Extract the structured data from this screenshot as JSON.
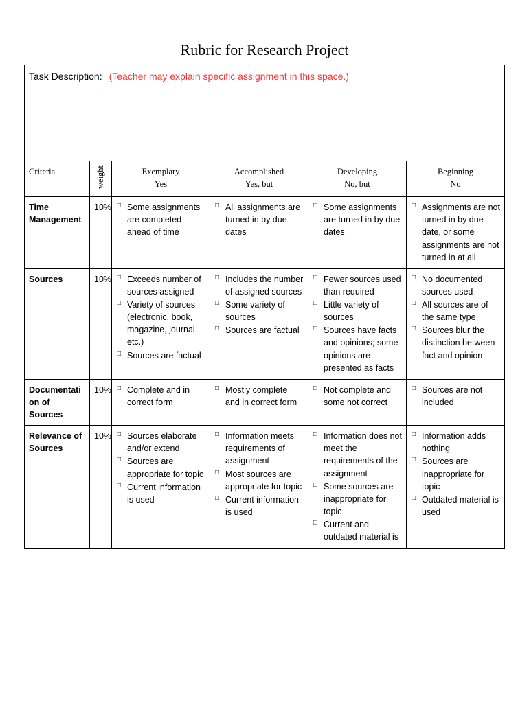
{
  "title": "Rubric for Research Project",
  "task_description": {
    "label": "Task Description:",
    "hint": "(Teacher may explain specific assignment in this space.)"
  },
  "headers": {
    "criteria": "Criteria",
    "weight": "weight",
    "levels": [
      {
        "title": "Exemplary",
        "sub": "Yes"
      },
      {
        "title": "Accomplished",
        "sub": "Yes, but"
      },
      {
        "title": "Developing",
        "sub": "No, but"
      },
      {
        "title": "Beginning",
        "sub": "No"
      }
    ]
  },
  "rows": [
    {
      "criteria": "Time Management",
      "weight": "10%",
      "cells": [
        [
          "Some assignments are completed ahead of time"
        ],
        [
          "All assignments are turned in by due dates"
        ],
        [
          "Some assignments are turned in by due dates"
        ],
        [
          "Assignments are not turned in by due date, or some assignments are not turned in at all"
        ]
      ]
    },
    {
      "criteria": "Sources",
      "weight": "10%",
      "cells": [
        [
          "Exceeds number of sources assigned",
          "Variety of sources (electronic, book, magazine, journal, etc.)",
          "Sources are factual"
        ],
        [
          "Includes the number of assigned sources",
          "Some variety of sources",
          "Sources are factual"
        ],
        [
          "Fewer sources used than required",
          "Little variety of sources",
          "Sources have facts and opinions; some opinions are presented as facts"
        ],
        [
          "No documented sources used",
          "All sources are of the same type",
          "Sources blur the distinction between fact and opinion"
        ]
      ]
    },
    {
      "criteria": "Documentation of Sources",
      "weight": "10%",
      "cells": [
        [
          "Complete and in correct form"
        ],
        [
          "Mostly complete and in correct form"
        ],
        [
          "Not complete and some not correct"
        ],
        [
          "Sources are not included"
        ]
      ]
    },
    {
      "criteria": "Relevance of Sources",
      "weight": "10%",
      "cells": [
        [
          "Sources elaborate and/or extend",
          "Sources are appropriate for topic",
          "Current information is used"
        ],
        [
          "Information meets requirements of assignment",
          "Most sources are appropriate for topic",
          "Current information is used"
        ],
        [
          "Information does not meet the requirements of the assignment",
          "Some sources are inappropriate for topic",
          "Current and outdated material is"
        ],
        [
          "Information adds nothing",
          "Sources are inappropriate for topic",
          "Outdated material is used"
        ]
      ]
    }
  ]
}
